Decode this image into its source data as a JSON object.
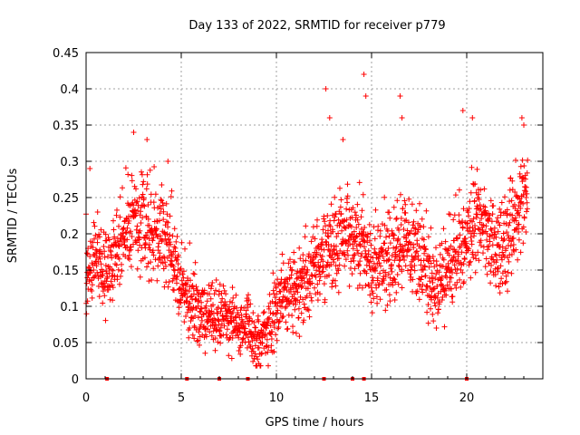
{
  "chart_data": {
    "type": "scatter",
    "title": "Day 133 of 2022, SRMTID for receiver p779",
    "xlabel": "GPS time / hours",
    "ylabel": "SRMTID / TECUs",
    "xlim": [
      0,
      24
    ],
    "ylim": [
      0,
      0.45
    ],
    "x_ticks": [
      0,
      5,
      10,
      15,
      20
    ],
    "x_tick_labels": [
      "0",
      "5",
      "10",
      "15",
      "20"
    ],
    "y_ticks": [
      0,
      0.05,
      0.1,
      0.15,
      0.2,
      0.25,
      0.3,
      0.35,
      0.4,
      0.45
    ],
    "y_tick_labels": [
      "0",
      "0.05",
      "0.1",
      "0.15",
      "0.2",
      "0.25",
      "0.3",
      "0.35",
      "0.4",
      "0.45"
    ],
    "grid": true,
    "marker": "+",
    "marker_color": "#ff0000",
    "series": [
      {
        "name": "SRMTID",
        "trend": [
          [
            0.0,
            0.15
          ],
          [
            0.5,
            0.16
          ],
          [
            1.0,
            0.15
          ],
          [
            1.5,
            0.16
          ],
          [
            2.0,
            0.2
          ],
          [
            2.5,
            0.21
          ],
          [
            3.0,
            0.22
          ],
          [
            3.5,
            0.21
          ],
          [
            4.0,
            0.2
          ],
          [
            4.5,
            0.17
          ],
          [
            5.0,
            0.13
          ],
          [
            5.5,
            0.1
          ],
          [
            6.0,
            0.09
          ],
          [
            6.5,
            0.08
          ],
          [
            7.0,
            0.08
          ],
          [
            7.5,
            0.08
          ],
          [
            8.0,
            0.08
          ],
          [
            8.5,
            0.07
          ],
          [
            9.0,
            0.05
          ],
          [
            9.5,
            0.06
          ],
          [
            10.0,
            0.1
          ],
          [
            10.5,
            0.12
          ],
          [
            11.0,
            0.12
          ],
          [
            11.5,
            0.13
          ],
          [
            12.0,
            0.15
          ],
          [
            12.5,
            0.17
          ],
          [
            13.0,
            0.19
          ],
          [
            13.5,
            0.2
          ],
          [
            14.0,
            0.2
          ],
          [
            14.5,
            0.18
          ],
          [
            15.0,
            0.15
          ],
          [
            15.5,
            0.16
          ],
          [
            16.0,
            0.17
          ],
          [
            16.5,
            0.19
          ],
          [
            17.0,
            0.18
          ],
          [
            17.5,
            0.17
          ],
          [
            18.0,
            0.14
          ],
          [
            18.5,
            0.12
          ],
          [
            19.0,
            0.14
          ],
          [
            19.5,
            0.17
          ],
          [
            20.0,
            0.2
          ],
          [
            20.5,
            0.22
          ],
          [
            21.0,
            0.2
          ],
          [
            21.5,
            0.17
          ],
          [
            22.0,
            0.18
          ],
          [
            22.5,
            0.21
          ],
          [
            23.0,
            0.25
          ]
        ],
        "spikes": [
          [
            0.2,
            0.29
          ],
          [
            2.5,
            0.34
          ],
          [
            3.2,
            0.33
          ],
          [
            4.3,
            0.3
          ],
          [
            12.6,
            0.4
          ],
          [
            12.8,
            0.36
          ],
          [
            13.5,
            0.33
          ],
          [
            14.6,
            0.42
          ],
          [
            14.7,
            0.39
          ],
          [
            16.5,
            0.39
          ],
          [
            16.6,
            0.36
          ],
          [
            19.8,
            0.37
          ],
          [
            20.3,
            0.36
          ],
          [
            22.9,
            0.36
          ],
          [
            23.0,
            0.35
          ]
        ],
        "zero_points": [
          1.1,
          5.3,
          7.0,
          8.5,
          12.5,
          14.0,
          14.6,
          20.0
        ]
      }
    ]
  }
}
